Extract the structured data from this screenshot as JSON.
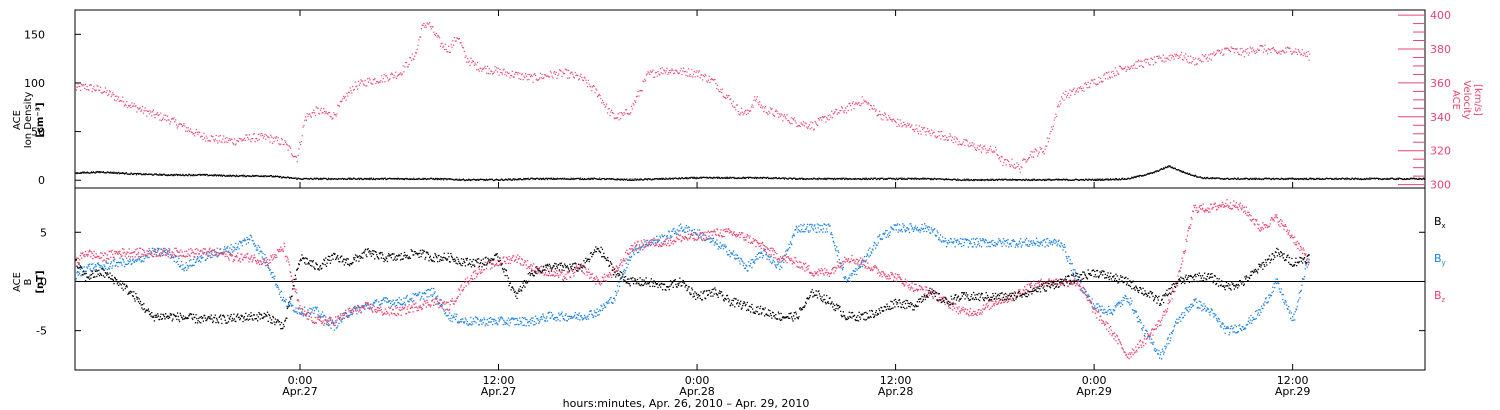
{
  "figure": {
    "xaxis_caption": "hours:minutes, Apr. 26, 2010 – Apr. 29, 2010"
  },
  "colors": {
    "black": "#000000",
    "density": "#e8456f",
    "bx": "#000000",
    "by": "#1c82e0",
    "bz": "#e8456f"
  },
  "chart_data": [
    {
      "type": "scatter",
      "panel": "top",
      "x_unit": "hours since 2010-04-26 00:00",
      "x_ticks": [
        {
          "x": 24,
          "time": "0:00",
          "date": "Apr.27"
        },
        {
          "x": 36,
          "time": "12:00",
          "date": "Apr.27"
        },
        {
          "x": 48,
          "time": "0:00",
          "date": "Apr.28"
        },
        {
          "x": 60,
          "time": "12:00",
          "date": "Apr.28"
        },
        {
          "x": 72,
          "time": "0:00",
          "date": "Apr.29"
        },
        {
          "x": 84,
          "time": "12:00",
          "date": "Apr.29"
        }
      ],
      "xlim": [
        10.4,
        92.0
      ],
      "left_axis": {
        "label_lines": [
          "ACE",
          "Ion Density",
          "[cm⁻³]"
        ],
        "ylim": [
          -8,
          175
        ],
        "ticks": [
          0,
          50,
          100,
          150
        ]
      },
      "right_axis": {
        "label_lines": [
          "ACE",
          "Velocity",
          "[km/s]"
        ],
        "ylim": [
          298,
          403
        ],
        "ticks": [
          300,
          320,
          340,
          360,
          380,
          400
        ]
      },
      "series": [
        {
          "axis": "left",
          "color": "#000000",
          "x": [
            10.4,
            12,
            14,
            16,
            18,
            20,
            22,
            24,
            26,
            28,
            30,
            32,
            34,
            36,
            38,
            40,
            42,
            44,
            46,
            48,
            50,
            52,
            54,
            56,
            58,
            60,
            62,
            64,
            66,
            68,
            70,
            72,
            74,
            75.5,
            76.5,
            77.5,
            78.5,
            80,
            82,
            84,
            86,
            88,
            90,
            92
          ],
          "y": [
            8,
            9,
            7,
            6,
            6,
            5,
            5,
            2,
            2,
            2,
            2,
            2,
            1,
            1,
            2,
            2,
            2,
            1,
            2,
            3,
            3,
            3,
            2,
            2,
            2,
            2,
            2,
            1,
            1,
            1,
            1,
            1,
            2,
            8,
            15,
            8,
            3,
            2,
            2,
            2,
            2,
            2,
            2,
            2
          ]
        },
        {
          "axis": "right",
          "color": "#e8456f",
          "x": [
            10.4,
            11,
            12,
            13,
            14,
            15,
            16,
            17,
            18,
            19,
            20,
            21,
            22,
            23,
            23.8,
            24.3,
            25,
            26,
            26.6,
            27.2,
            28,
            29,
            30,
            31,
            31.3,
            31.7,
            32.5,
            33,
            33.5,
            34,
            34.5,
            35,
            36,
            37,
            38,
            39,
            40,
            41,
            42,
            42.6,
            43,
            43.5,
            44,
            44.5,
            45,
            46,
            47,
            48,
            49,
            50,
            50.5,
            51,
            51.5,
            52,
            53,
            54,
            55,
            56,
            57,
            58,
            59,
            60,
            61,
            62,
            63,
            64,
            65,
            66,
            66.5,
            67,
            67.5,
            68,
            69,
            70,
            71,
            72,
            73,
            74,
            75,
            76,
            77,
            78,
            79,
            80,
            81,
            82,
            83,
            84,
            85
          ],
          "y": [
            357,
            358,
            356,
            351,
            346,
            342,
            339,
            334,
            329,
            327,
            326,
            328,
            328,
            325,
            316,
            340,
            344,
            341,
            350,
            358,
            361,
            363,
            366,
            378,
            392,
            396,
            383,
            380,
            388,
            375,
            371,
            369,
            367,
            365,
            363,
            365,
            366,
            363,
            354,
            344,
            340,
            341,
            345,
            355,
            365,
            368,
            367,
            366,
            361,
            350,
            344,
            342,
            351,
            345,
            341,
            337,
            335,
            341,
            345,
            350,
            342,
            337,
            334,
            331,
            329,
            325,
            322,
            320,
            313,
            313,
            310,
            318,
            321,
            352,
            356,
            361,
            366,
            370,
            372,
            374,
            377,
            373,
            376,
            380,
            378,
            381,
            378,
            380,
            376
          ]
        }
      ]
    },
    {
      "type": "scatter",
      "panel": "bottom",
      "xlim": [
        10.4,
        92.0
      ],
      "y_axis": {
        "label_lines": [
          "ACE",
          "B",
          "[nT]"
        ],
        "ylim": [
          -9.0,
          9.5
        ],
        "ticks": [
          -5,
          0,
          5
        ]
      },
      "zero_line": true,
      "series": [
        {
          "name": "Bx",
          "color": "#000000",
          "x": [
            10.4,
            11,
            12,
            13,
            14,
            15,
            16,
            17,
            18,
            19,
            20,
            21,
            22,
            23,
            24,
            25,
            26,
            27,
            28,
            29,
            30,
            31,
            32,
            33,
            34,
            35,
            36,
            37,
            38,
            39,
            40,
            41,
            42,
            43,
            44,
            45,
            46,
            47,
            48,
            49,
            50,
            51,
            52,
            53,
            54,
            55,
            56,
            57,
            58,
            59,
            60,
            61,
            62,
            63,
            64,
            65,
            66,
            67,
            68,
            69,
            70,
            71,
            72,
            73,
            74,
            75,
            76,
            77,
            78,
            79,
            80,
            81,
            82,
            83,
            84,
            85
          ],
          "y": [
            2,
            0.5,
            1,
            0,
            -1.5,
            -3.5,
            -3.5,
            -3.6,
            -3.8,
            -3.8,
            -3.7,
            -3.5,
            -3.5,
            -4.5,
            2.5,
            1.5,
            2.5,
            2,
            3,
            2.5,
            2.5,
            3,
            2.5,
            2.5,
            2,
            2,
            2.5,
            -1.5,
            1,
            1.5,
            1.5,
            1.5,
            3.5,
            1,
            0,
            0,
            -0.5,
            0,
            -1.5,
            -1,
            -2,
            -2.5,
            -3,
            -3.5,
            -3.5,
            -1,
            -2,
            -3.5,
            -3.5,
            -3,
            -2,
            -2.5,
            -1,
            -2,
            -1.5,
            -1.5,
            -1.5,
            -1.5,
            -1,
            -0.5,
            0,
            0.5,
            1,
            0.5,
            0,
            -1,
            -2,
            0,
            0.5,
            0.5,
            -0.5,
            0,
            1.5,
            3,
            2,
            2.5
          ]
        },
        {
          "name": "By",
          "color": "#1c82e0",
          "x": [
            10.4,
            11,
            12,
            13,
            14,
            15,
            16,
            17,
            18,
            19,
            20,
            21,
            22,
            23,
            24,
            25,
            26,
            27,
            28,
            29,
            30,
            31,
            32,
            33,
            34,
            35,
            36,
            37,
            38,
            39,
            40,
            41,
            42,
            43,
            44,
            45,
            46,
            47,
            48,
            49,
            50,
            51,
            52,
            53,
            54,
            55,
            56,
            57,
            58,
            59,
            60,
            61,
            62,
            63,
            64,
            65,
            66,
            67,
            68,
            69,
            70,
            71,
            72,
            73,
            74,
            75,
            76,
            77,
            78,
            79,
            80,
            81,
            82,
            83,
            84,
            85
          ],
          "y": [
            0.5,
            1.5,
            1.5,
            2,
            2,
            3,
            3,
            1.5,
            2.5,
            3,
            3.5,
            4.5,
            2,
            -2,
            -3,
            -3,
            -4.5,
            -3,
            -2.5,
            -2,
            -2,
            -1.5,
            -1,
            -3.5,
            -4,
            -4,
            -4,
            -4,
            -4,
            -3.5,
            -3.5,
            -3.5,
            -3,
            -1.5,
            3,
            4,
            4.5,
            5.5,
            5,
            4,
            3,
            1.5,
            3,
            1.5,
            5.5,
            5.5,
            5.5,
            0,
            2,
            4.5,
            5.5,
            5.5,
            5.5,
            4,
            4,
            4,
            4,
            4,
            4,
            4,
            4,
            0,
            -2.5,
            -3,
            -1.5,
            -5,
            -7.5,
            -4,
            -2,
            -3,
            -5,
            -4.5,
            -3,
            0,
            -4,
            3
          ]
        },
        {
          "name": "Bz",
          "color": "#e8456f",
          "x": [
            10.4,
            11,
            12,
            13,
            14,
            15,
            16,
            17,
            18,
            19,
            20,
            21,
            22,
            23,
            24,
            25,
            26,
            27,
            28,
            29,
            30,
            31,
            32,
            33,
            34,
            35,
            36,
            37,
            38,
            39,
            40,
            41,
            42,
            43,
            44,
            45,
            46,
            47,
            48,
            49,
            50,
            51,
            52,
            53,
            54,
            55,
            56,
            57,
            58,
            59,
            60,
            61,
            62,
            63,
            64,
            65,
            66,
            67,
            68,
            69,
            70,
            71,
            72,
            73,
            74,
            75,
            76,
            77,
            78,
            79,
            80,
            81,
            82,
            83,
            84,
            85
          ],
          "y": [
            2,
            3,
            2.5,
            3,
            3,
            3,
            3,
            3,
            3,
            3,
            2.5,
            2.5,
            2,
            3.5,
            -3,
            -4,
            -4,
            -3,
            -2.5,
            -3,
            -3,
            -2.5,
            -2,
            -2.5,
            0,
            1.5,
            2,
            2.5,
            1.5,
            1,
            0.5,
            1.5,
            0,
            1,
            3.5,
            4,
            4,
            4.5,
            4.5,
            5,
            5,
            4.5,
            3.5,
            2.5,
            2,
            1,
            1,
            2.5,
            2,
            1,
            0.5,
            -0.5,
            -1,
            -2,
            -3,
            -3,
            -2,
            -1.5,
            -0.5,
            0,
            0,
            0,
            -3,
            -5,
            -7.5,
            -6,
            -4,
            0,
            7.5,
            7.5,
            8,
            7.5,
            5.5,
            6.5,
            4.5,
            2
          ]
        }
      ]
    }
  ],
  "legend": {
    "bx": "B",
    "bx_sub": "x",
    "by": "B",
    "by_sub": "y",
    "bz": "B",
    "bz_sub": "z"
  }
}
